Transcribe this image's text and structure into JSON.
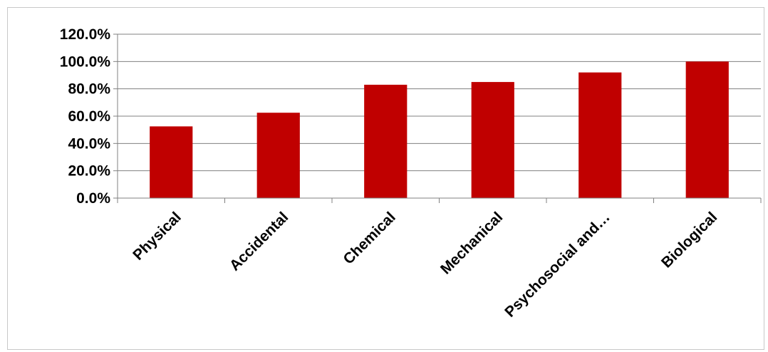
{
  "chart_data": {
    "type": "bar",
    "categories": [
      "Physical",
      "Accidental",
      "Chemical",
      "Mechanical",
      "Psychosocial and…",
      "Biological"
    ],
    "values": [
      52.5,
      62.5,
      83.0,
      85.0,
      92.0,
      100.0
    ],
    "yticks": [
      "0.0%",
      "20.0%",
      "40.0%",
      "60.0%",
      "80.0%",
      "100.0%",
      "120.0%"
    ],
    "ylim": [
      0,
      120
    ],
    "grid": true,
    "bar_color": "#C00000",
    "grid_color": "#808080"
  }
}
